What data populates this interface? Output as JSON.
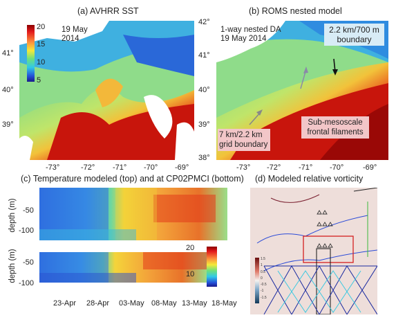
{
  "panels": {
    "a": {
      "title": "(a) AVHRR SST",
      "date_label": [
        "19 May",
        "2014"
      ],
      "colorbar_ticks": [
        "20",
        "15",
        "10",
        "5"
      ],
      "lat_ticks": [
        "41°",
        "40°",
        "39°"
      ],
      "lon_ticks": [
        "-73°",
        "-72°",
        "-71°",
        "-70°",
        "-69°"
      ]
    },
    "b": {
      "title": "(b) ROMS nested  model",
      "note": [
        "1-way nested DA",
        "19 May 2014"
      ],
      "boundary_label": [
        "2.2 km/700 m",
        "boundary"
      ],
      "filaments_label": [
        "Sub-mesoscale",
        "frontal filaments"
      ],
      "grid_label": [
        "7 km/2.2 km",
        "grid boundary"
      ],
      "lat_ticks": [
        "42°",
        "41°",
        "40°",
        "39°",
        "38°"
      ],
      "lon_ticks": [
        "-73°",
        "-72°",
        "-71°",
        "-70°",
        "-69°"
      ]
    },
    "c": {
      "title": "(c) Temperature modeled (top) and at CP02PMCI (bottom)",
      "ylabel": "depth (m)",
      "top_yticks": [
        "-50",
        "-100"
      ],
      "bottom_yticks": [
        "-50",
        "-100"
      ],
      "xticks": [
        "23-Apr",
        "28-Apr",
        "03-May",
        "08-May",
        "13-May",
        "18-May"
      ],
      "colorbar_ticks": [
        "20",
        "10"
      ]
    },
    "d": {
      "title": "(d) Modeled relative vorticity",
      "colorbar_ticks": [
        "1.5",
        "1",
        "0.5",
        "0",
        "-0.5",
        "-1",
        "-1.5"
      ]
    }
  },
  "colors": {
    "warm": "#c8100a",
    "orange": "#f08a1c",
    "yellow": "#e8d83a",
    "green": "#7ed07a",
    "cyan": "#3fc6e0",
    "blue": "#2a55d8",
    "land": "#ffffff",
    "label_box": "#f2c6c8"
  }
}
